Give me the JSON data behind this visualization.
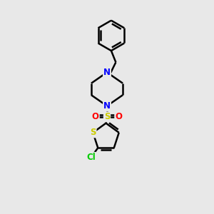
{
  "background_color": "#e8e8e8",
  "bond_color": "#000000",
  "atom_colors": {
    "N": "#0000ff",
    "S_sulfonyl": "#cccc00",
    "O": "#ff0000",
    "S_thio": "#cccc00",
    "Cl": "#00cc00"
  },
  "figsize": [
    3.0,
    3.0
  ],
  "dpi": 100,
  "xlim": [
    0,
    10
  ],
  "ylim": [
    0,
    10
  ]
}
